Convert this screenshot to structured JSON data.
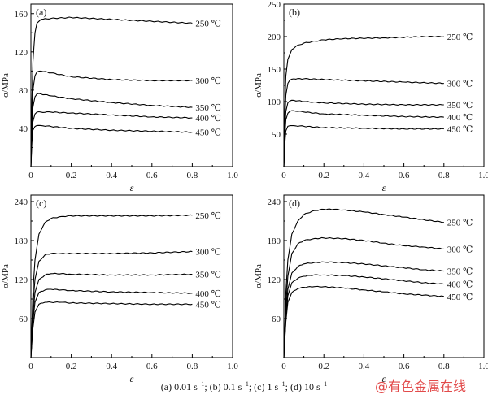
{
  "caption": {
    "a": "(a) 0.01 s",
    "b": "; (b) 0.1 s",
    "c": "; (c)  1 s",
    "d": "; (d) 10 s",
    "exp": "−1",
    "tail": ""
  },
  "watermark": "@有色金属在线",
  "chart_data": [
    {
      "type": "line",
      "panel_label": "(a)",
      "xlabel": "ε",
      "ylabel": "σ/MPa",
      "xlim": [
        0,
        1.0
      ],
      "ylim": [
        0,
        170
      ],
      "xticks": [
        "0",
        "0.2",
        "0.4",
        "0.6",
        "0.8",
        "1.0"
      ],
      "xtick_values": [
        0,
        0.2,
        0.4,
        0.6,
        0.8,
        1.0
      ],
      "yticks": [
        "0",
        "40",
        "80",
        "120",
        "160"
      ],
      "ytick_values": [
        0,
        40,
        80,
        120,
        160
      ],
      "grid": false,
      "series": [
        {
          "name": "250 ℃",
          "x": [
            0,
            0.005,
            0.01,
            0.02,
            0.03,
            0.05,
            0.1,
            0.2,
            0.3,
            0.5,
            0.7,
            0.8
          ],
          "y": [
            0,
            70,
            110,
            140,
            150,
            154,
            155,
            156,
            155,
            153,
            151,
            150
          ]
        },
        {
          "name": "300 ℃",
          "x": [
            0,
            0.005,
            0.01,
            0.02,
            0.03,
            0.05,
            0.1,
            0.2,
            0.4,
            0.6,
            0.8
          ],
          "y": [
            0,
            50,
            80,
            95,
            99,
            100,
            98,
            94,
            91,
            90,
            90
          ]
        },
        {
          "name": "350 ℃",
          "x": [
            0,
            0.005,
            0.01,
            0.02,
            0.03,
            0.05,
            0.1,
            0.2,
            0.4,
            0.6,
            0.8
          ],
          "y": [
            0,
            40,
            62,
            73,
            76,
            76,
            74,
            71,
            67,
            64,
            62
          ]
        },
        {
          "name": "400 ℃",
          "x": [
            0,
            0.005,
            0.01,
            0.02,
            0.03,
            0.05,
            0.1,
            0.2,
            0.4,
            0.6,
            0.8
          ],
          "y": [
            0,
            30,
            47,
            55,
            57,
            57,
            57,
            56,
            54,
            52,
            51
          ]
        },
        {
          "name": "450 ℃",
          "x": [
            0,
            0.005,
            0.01,
            0.02,
            0.03,
            0.05,
            0.1,
            0.2,
            0.4,
            0.6,
            0.8
          ],
          "y": [
            0,
            25,
            38,
            42,
            43,
            43,
            42,
            40,
            38,
            37,
            36
          ]
        }
      ]
    },
    {
      "type": "line",
      "panel_label": "(b)",
      "xlabel": "ε",
      "ylabel": "σ/MPa",
      "xlim": [
        0,
        1.0
      ],
      "ylim": [
        0,
        250
      ],
      "xticks": [
        "0",
        "0.2",
        "0.4",
        "0.6",
        "0.8",
        "1.0"
      ],
      "xtick_values": [
        0,
        0.2,
        0.4,
        0.6,
        0.8,
        1.0
      ],
      "yticks": [
        "0",
        "50",
        "100",
        "150",
        "200",
        "250"
      ],
      "ytick_values": [
        0,
        50,
        100,
        150,
        200,
        250
      ],
      "grid": false,
      "series": [
        {
          "name": "250 ℃",
          "x": [
            0,
            0.005,
            0.01,
            0.02,
            0.04,
            0.06,
            0.1,
            0.2,
            0.3,
            0.5,
            0.7,
            0.8
          ],
          "y": [
            0,
            90,
            140,
            165,
            180,
            185,
            190,
            195,
            197,
            198,
            200,
            200
          ]
        },
        {
          "name": "300 ℃",
          "x": [
            0,
            0.005,
            0.01,
            0.02,
            0.03,
            0.05,
            0.1,
            0.2,
            0.4,
            0.6,
            0.8
          ],
          "y": [
            0,
            70,
            110,
            128,
            133,
            135,
            135,
            134,
            132,
            130,
            128
          ]
        },
        {
          "name": "350 ℃",
          "x": [
            0,
            0.005,
            0.01,
            0.02,
            0.03,
            0.05,
            0.1,
            0.2,
            0.4,
            0.6,
            0.8
          ],
          "y": [
            0,
            55,
            85,
            98,
            101,
            102,
            100,
            98,
            96,
            95,
            95
          ]
        },
        {
          "name": "400 ℃",
          "x": [
            0,
            0.005,
            0.01,
            0.02,
            0.03,
            0.05,
            0.1,
            0.2,
            0.4,
            0.6,
            0.8
          ],
          "y": [
            0,
            45,
            72,
            82,
            85,
            86,
            84,
            81,
            79,
            77,
            76
          ]
        },
        {
          "name": "450 ℃",
          "x": [
            0,
            0.005,
            0.01,
            0.02,
            0.03,
            0.05,
            0.1,
            0.2,
            0.4,
            0.6,
            0.8
          ],
          "y": [
            0,
            35,
            55,
            62,
            63,
            63,
            62,
            60,
            59,
            58,
            58
          ]
        }
      ]
    },
    {
      "type": "line",
      "panel_label": "(c)",
      "xlabel": "ε",
      "ylabel": "σ/MPa",
      "xlim": [
        0,
        1.0
      ],
      "ylim": [
        0,
        250
      ],
      "xticks": [
        "0",
        "0.2",
        "0.4",
        "0.6",
        "0.8",
        "1.0"
      ],
      "xtick_values": [
        0,
        0.2,
        0.4,
        0.6,
        0.8,
        1.0
      ],
      "yticks": [
        "0",
        "60",
        "120",
        "180",
        "240"
      ],
      "ytick_values": [
        0,
        60,
        120,
        180,
        240
      ],
      "grid": false,
      "series": [
        {
          "name": "250 ℃",
          "x": [
            0,
            0.01,
            0.02,
            0.04,
            0.07,
            0.1,
            0.15,
            0.2,
            0.4,
            0.6,
            0.8
          ],
          "y": [
            0,
            100,
            150,
            190,
            208,
            214,
            217,
            218,
            218,
            218,
            219
          ]
        },
        {
          "name": "300 ℃",
          "x": [
            0,
            0.01,
            0.02,
            0.04,
            0.07,
            0.1,
            0.15,
            0.2,
            0.4,
            0.6,
            0.8
          ],
          "y": [
            0,
            80,
            120,
            148,
            158,
            160,
            160,
            160,
            160,
            161,
            163
          ]
        },
        {
          "name": "350 ℃",
          "x": [
            0,
            0.01,
            0.02,
            0.04,
            0.07,
            0.1,
            0.15,
            0.2,
            0.4,
            0.6,
            0.8
          ],
          "y": [
            0,
            65,
            100,
            120,
            127,
            129,
            129,
            128,
            127,
            127,
            128
          ]
        },
        {
          "name": "400 ℃",
          "x": [
            0,
            0.01,
            0.02,
            0.04,
            0.07,
            0.1,
            0.15,
            0.2,
            0.4,
            0.6,
            0.8
          ],
          "y": [
            0,
            55,
            85,
            100,
            104,
            105,
            104,
            103,
            101,
            100,
            99
          ]
        },
        {
          "name": "450 ℃",
          "x": [
            0,
            0.01,
            0.02,
            0.04,
            0.07,
            0.1,
            0.15,
            0.2,
            0.4,
            0.6,
            0.8
          ],
          "y": [
            0,
            45,
            70,
            82,
            85,
            85,
            85,
            84,
            83,
            82,
            82
          ]
        }
      ]
    },
    {
      "type": "line",
      "panel_label": "(d)",
      "xlabel": "ε",
      "ylabel": "σ/MPa",
      "xlim": [
        0,
        1.0
      ],
      "ylim": [
        0,
        250
      ],
      "xticks": [
        "0",
        "0.2",
        "0.4",
        "0.6",
        "0.8",
        "1.0"
      ],
      "xtick_values": [
        0,
        0.2,
        0.4,
        0.6,
        0.8,
        1.0
      ],
      "yticks": [
        "0",
        "60",
        "120",
        "180",
        "240"
      ],
      "ytick_values": [
        0,
        60,
        120,
        180,
        240
      ],
      "grid": false,
      "series": [
        {
          "name": "250 ℃",
          "x": [
            0,
            0.01,
            0.02,
            0.04,
            0.07,
            0.1,
            0.15,
            0.2,
            0.25,
            0.3,
            0.4,
            0.5,
            0.6,
            0.7,
            0.8
          ],
          "y": [
            0,
            100,
            150,
            190,
            210,
            220,
            226,
            228,
            228,
            227,
            224,
            220,
            216,
            212,
            208
          ]
        },
        {
          "name": "300 ℃",
          "x": [
            0,
            0.01,
            0.02,
            0.04,
            0.07,
            0.1,
            0.15,
            0.2,
            0.3,
            0.4,
            0.5,
            0.6,
            0.7,
            0.8
          ],
          "y": [
            0,
            80,
            125,
            160,
            175,
            180,
            183,
            184,
            183,
            180,
            176,
            172,
            170,
            167
          ]
        },
        {
          "name": "350 ℃",
          "x": [
            0,
            0.01,
            0.02,
            0.04,
            0.07,
            0.1,
            0.15,
            0.2,
            0.3,
            0.4,
            0.5,
            0.6,
            0.7,
            0.8
          ],
          "y": [
            0,
            65,
            105,
            130,
            140,
            144,
            146,
            147,
            146,
            144,
            141,
            138,
            135,
            133
          ]
        },
        {
          "name": "400 ℃",
          "x": [
            0,
            0.01,
            0.02,
            0.04,
            0.07,
            0.1,
            0.15,
            0.2,
            0.3,
            0.4,
            0.5,
            0.6,
            0.7,
            0.8
          ],
          "y": [
            0,
            60,
            95,
            115,
            122,
            125,
            127,
            127,
            126,
            124,
            121,
            118,
            115,
            113
          ]
        },
        {
          "name": "450 ℃",
          "x": [
            0,
            0.01,
            0.02,
            0.04,
            0.07,
            0.1,
            0.15,
            0.2,
            0.3,
            0.4,
            0.5,
            0.6,
            0.7,
            0.8
          ],
          "y": [
            0,
            55,
            85,
            100,
            106,
            108,
            109,
            109,
            107,
            104,
            101,
            98,
            96,
            94
          ]
        }
      ]
    }
  ]
}
